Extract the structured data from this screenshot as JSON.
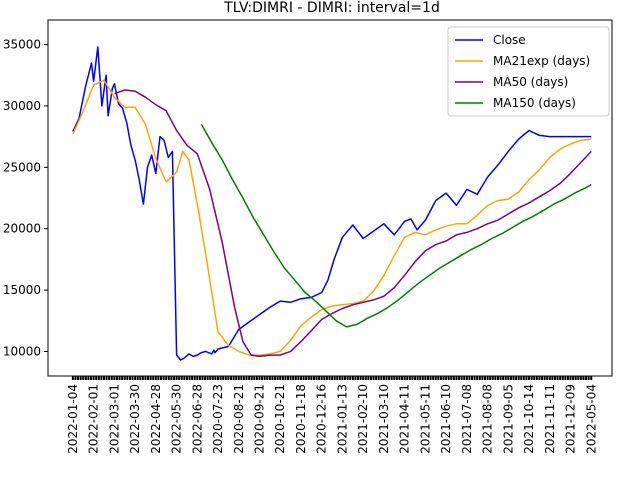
{
  "chart_data": {
    "type": "line",
    "title": "TLV:DIMRI - DIMRI: interval=1d",
    "xlabel": "",
    "ylabel": "",
    "x_tick_labels": [
      "2022-01-04",
      "2022-02-01",
      "2022-03-01",
      "2022-03-30",
      "2022-04-28",
      "2022-05-30",
      "2022-06-28",
      "2020-07-23",
      "2020-08-21",
      "2020-09-21",
      "2020-10-21",
      "2020-11-18",
      "2020-12-16",
      "2021-01-13",
      "2021-02-10",
      "2021-03-10",
      "2021-04-11",
      "2021-05-11",
      "2021-06-10",
      "2021-07-08",
      "2021-08-08",
      "2021-09-05",
      "2021-10-14",
      "2021-11-11",
      "2021-12-09",
      "2022-05-04"
    ],
    "y_tick_labels": [
      "10000",
      "15000",
      "20000",
      "25000",
      "30000",
      "35000"
    ],
    "y_ticks": [
      10000,
      15000,
      20000,
      25000,
      30000,
      35000
    ],
    "ylim": [
      8000,
      37000
    ],
    "xlim": [
      -1.2,
      26.0
    ],
    "grid": false,
    "legend_position": "upper-right",
    "colors": {
      "close": "#0000ff",
      "ma21": "#ffa500",
      "ma50": "#800080",
      "ma150": "#008000"
    },
    "series": [
      {
        "name": "Close",
        "color": "#0000ff",
        "x": [
          0,
          0.3,
          0.6,
          0.9,
          1.0,
          1.2,
          1.4,
          1.6,
          1.7,
          1.9,
          2.0,
          2.2,
          2.4,
          2.6,
          2.8,
          3.0,
          3.2,
          3.4,
          3.6,
          3.8,
          4.0,
          4.2,
          4.4,
          4.6,
          4.8,
          5.0,
          5.2,
          5.4,
          5.6,
          5.8,
          6.0,
          6.2,
          6.4,
          6.7,
          6.8,
          6.85,
          7.0,
          7.5,
          8.0,
          8.5,
          9.0,
          9.5,
          10.0,
          10.5,
          11.0,
          11.5,
          12.0,
          12.3,
          12.6,
          13.0,
          13.5,
          14.0,
          14.5,
          15.0,
          15.5,
          16.0,
          16.3,
          16.6,
          17.0,
          17.5,
          18.0,
          18.5,
          19.0,
          19.5,
          20.0,
          20.5,
          21.0,
          21.5,
          22.0,
          22.5,
          23.0,
          23.5,
          24.0,
          24.4,
          24.7,
          25.0
        ],
        "y": [
          27900,
          29000,
          31500,
          33500,
          32000,
          34800,
          30000,
          32500,
          29200,
          31400,
          31800,
          30200,
          29800,
          28600,
          26800,
          25600,
          24000,
          22000,
          25000,
          26000,
          24500,
          27500,
          27200,
          25800,
          26300,
          9700,
          9300,
          9500,
          9800,
          9600,
          9700,
          9900,
          10000,
          9800,
          10100,
          9900,
          10200,
          10400,
          11800,
          12400,
          13000,
          13600,
          14100,
          14000,
          14300,
          14400,
          14800,
          15800,
          17500,
          19300,
          20300,
          19200,
          19800,
          20400,
          19500,
          20600,
          20800,
          19900,
          20700,
          22300,
          22900,
          21900,
          23200,
          22800,
          24200,
          25200,
          26300,
          27300,
          28000,
          27600,
          27500,
          27500,
          27500,
          27500,
          27500,
          27500
        ]
      },
      {
        "name": "MA21exp (days)",
        "color": "#ffa500",
        "x": [
          0,
          0.5,
          1.0,
          1.5,
          2.0,
          2.5,
          3.0,
          3.5,
          4.0,
          4.5,
          5.0,
          5.3,
          5.6,
          6.0,
          6.4,
          7.0,
          7.5,
          8.0,
          8.5,
          9.0,
          9.5,
          10.0,
          10.5,
          11.0,
          11.5,
          12.0,
          12.5,
          13.0,
          13.5,
          14.0,
          14.5,
          15.0,
          15.5,
          16.0,
          16.5,
          17.0,
          17.5,
          18.0,
          18.5,
          19.0,
          19.5,
          20.0,
          20.5,
          21.0,
          21.5,
          22.0,
          22.5,
          23.0,
          23.5,
          24.0,
          24.5,
          25.0
        ],
        "y": [
          27700,
          29600,
          31700,
          32100,
          30700,
          29900,
          29900,
          28500,
          25700,
          23800,
          24600,
          26300,
          25600,
          22000,
          18000,
          11600,
          10500,
          10000,
          9700,
          9700,
          9800,
          10000,
          10900,
          12100,
          12800,
          13400,
          13700,
          13800,
          13900,
          14100,
          14900,
          16200,
          17800,
          19300,
          19700,
          19500,
          19900,
          20200,
          20400,
          20400,
          21100,
          21900,
          22300,
          22400,
          23000,
          24000,
          24800,
          25800,
          26500,
          26900,
          27200,
          27300
        ]
      },
      {
        "name": "MA50 (days)",
        "color": "#800080",
        "x": [
          2.0,
          2.5,
          3.0,
          3.5,
          4.0,
          4.5,
          5.0,
          5.5,
          6.0,
          6.6,
          7.2,
          7.8,
          8.2,
          8.6,
          9.0,
          9.5,
          10.0,
          10.5,
          11.0,
          11.5,
          12.0,
          12.5,
          13.0,
          13.5,
          14.0,
          14.5,
          15.0,
          15.5,
          16.0,
          16.5,
          17.0,
          17.5,
          18.0,
          18.5,
          19.0,
          19.5,
          20.0,
          20.5,
          21.0,
          21.5,
          22.0,
          22.5,
          23.0,
          23.5,
          24.0,
          24.5,
          25.0
        ],
        "y": [
          31000,
          31300,
          31200,
          30700,
          30100,
          29600,
          28000,
          26800,
          26100,
          23200,
          18900,
          13600,
          10800,
          9700,
          9600,
          9700,
          9700,
          10000,
          10800,
          11700,
          12600,
          13100,
          13500,
          13800,
          14000,
          14200,
          14500,
          15200,
          16200,
          17300,
          18200,
          18700,
          19000,
          19500,
          19700,
          20000,
          20400,
          20700,
          21200,
          21700,
          22100,
          22600,
          23100,
          23700,
          24500,
          25400,
          26300
        ]
      },
      {
        "name": "MA150 (days)",
        "color": "#008000",
        "x": [
          6.2,
          6.7,
          7.2,
          7.7,
          8.2,
          8.7,
          9.2,
          9.7,
          10.2,
          10.7,
          11.2,
          11.7,
          12.2,
          12.7,
          13.2,
          13.7,
          14.2,
          14.7,
          15.2,
          15.7,
          16.2,
          16.7,
          17.2,
          17.7,
          18.2,
          18.7,
          19.2,
          19.7,
          20.2,
          20.7,
          21.2,
          21.7,
          22.2,
          22.7,
          23.2,
          23.7,
          24.2,
          24.7,
          25.0
        ],
        "y": [
          28500,
          27000,
          25600,
          24000,
          22500,
          20900,
          19500,
          18100,
          16800,
          15800,
          14800,
          14100,
          13300,
          12500,
          12000,
          12200,
          12700,
          13100,
          13600,
          14200,
          14900,
          15600,
          16200,
          16800,
          17300,
          17800,
          18300,
          18700,
          19200,
          19600,
          20100,
          20600,
          21000,
          21500,
          22000,
          22400,
          22900,
          23300,
          23600
        ]
      }
    ]
  }
}
